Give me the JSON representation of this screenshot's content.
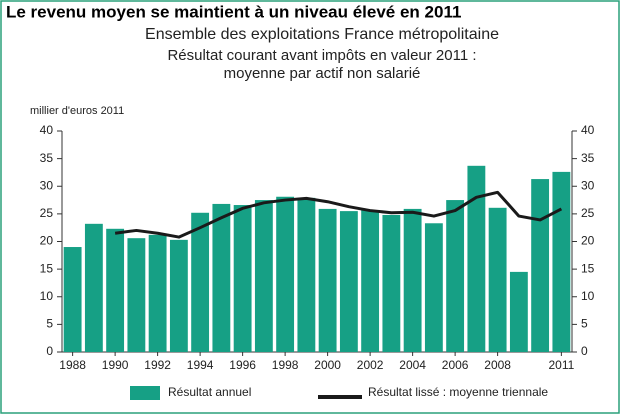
{
  "chart_data": {
    "type": "bar",
    "title": "Le revenu moyen se maintient à un niveau élevé en 2011",
    "subtitle": [
      "Ensemble des exploitations France métropolitaine",
      "Résultat courant avant impôts en valeur 2011 :",
      "moyenne par actif non salarié"
    ],
    "y_label": "millier d'euros 2011",
    "categories": [
      "1988",
      null,
      "1990",
      null,
      "1992",
      null,
      "1994",
      null,
      "1996",
      null,
      "1998",
      null,
      "2000",
      null,
      "2002",
      null,
      "2004",
      null,
      "2006",
      null,
      "2008",
      null,
      null,
      "2011"
    ],
    "series": [
      {
        "name": "Résultat annuel",
        "type": "bar",
        "color": "#16a085",
        "values": [
          19.0,
          23.2,
          22.3,
          20.6,
          21.2,
          20.3,
          25.2,
          26.8,
          26.6,
          27.5,
          28.1,
          27.9,
          25.9,
          25.5,
          25.7,
          24.8,
          25.9,
          23.3,
          27.5,
          33.7,
          26.1,
          14.5,
          31.3,
          32.6
        ]
      },
      {
        "name": "Résultat lissé : moyenne triennale",
        "type": "line",
        "color": "#1a1a1a",
        "values": [
          null,
          null,
          21.5,
          22.0,
          21.5,
          20.8,
          22.5,
          24.3,
          26.0,
          27.0,
          27.5,
          27.8,
          27.2,
          26.3,
          25.6,
          25.2,
          25.3,
          24.6,
          25.6,
          28.0,
          28.9,
          24.6,
          23.9,
          25.9
        ]
      }
    ],
    "ylim": [
      0,
      40
    ],
    "yticks": [
      0,
      5,
      10,
      15,
      20,
      25,
      30,
      35,
      40
    ],
    "grid": false
  }
}
